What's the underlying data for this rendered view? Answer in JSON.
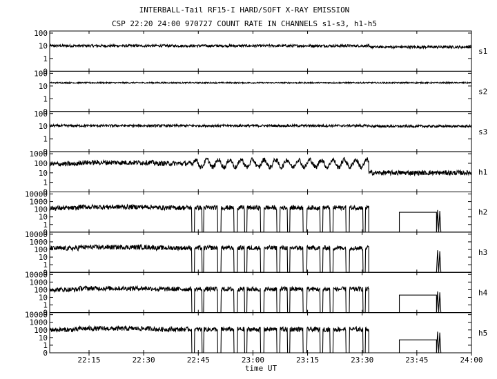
{
  "chart_data": {
    "type": "line",
    "title": "INTERBALL-Tail RF15-I HARD/SOFT X-RAY EMISSION",
    "subtitle": "CSP 22:20 24:00 970727  COUNT RATE IN CHANNELS s1-s3, h1-h5",
    "xlabel": "time UT",
    "x_ticks": [
      "22:15",
      "22:30",
      "22:45",
      "23:00",
      "23:15",
      "23:30",
      "23:45",
      "24:00"
    ],
    "x_tick_values": [
      22.25,
      22.5,
      22.75,
      23.0,
      23.25,
      23.5,
      23.75,
      24.0
    ],
    "xlim": [
      22.07,
      24.0
    ],
    "y_scale": "log",
    "grid": false,
    "panels": [
      {
        "channel": "s1",
        "y_ticks": [
          "100",
          "10",
          "1",
          "0"
        ],
        "level": 10,
        "noise": 0.1,
        "end_level": 8
      },
      {
        "channel": "s2",
        "y_ticks": [
          "100",
          "10",
          "1",
          "0"
        ],
        "level": 18,
        "noise": 0.05,
        "end_level": 18
      },
      {
        "channel": "s3",
        "y_ticks": [
          "100",
          "10",
          "1",
          "0"
        ],
        "level": 11,
        "noise": 0.09,
        "end_level": 10
      },
      {
        "channel": "h1",
        "y_ticks": [
          "1000",
          "100",
          "10",
          "1",
          "0"
        ],
        "level": 120,
        "noise": 0.25,
        "end_level": 10
      },
      {
        "channel": "h2",
        "y_ticks": [
          "10000",
          "1000",
          "100",
          "10",
          "1",
          "0"
        ],
        "level": 200,
        "noise": 0.3,
        "end_level": 40
      },
      {
        "channel": "h3",
        "y_ticks": [
          "10000",
          "1000",
          "100",
          "10",
          "1",
          "0"
        ],
        "level": 200,
        "noise": 0.3,
        "end_level": 0
      },
      {
        "channel": "h4",
        "y_ticks": [
          "10000",
          "1000",
          "100",
          "10",
          "1",
          "0"
        ],
        "level": 150,
        "noise": 0.3,
        "end_level": 20
      },
      {
        "channel": "h5",
        "y_ticks": [
          "10000",
          "1000",
          "100",
          "10",
          "1",
          "0"
        ],
        "level": 150,
        "noise": 0.3,
        "end_level": 5
      }
    ]
  }
}
